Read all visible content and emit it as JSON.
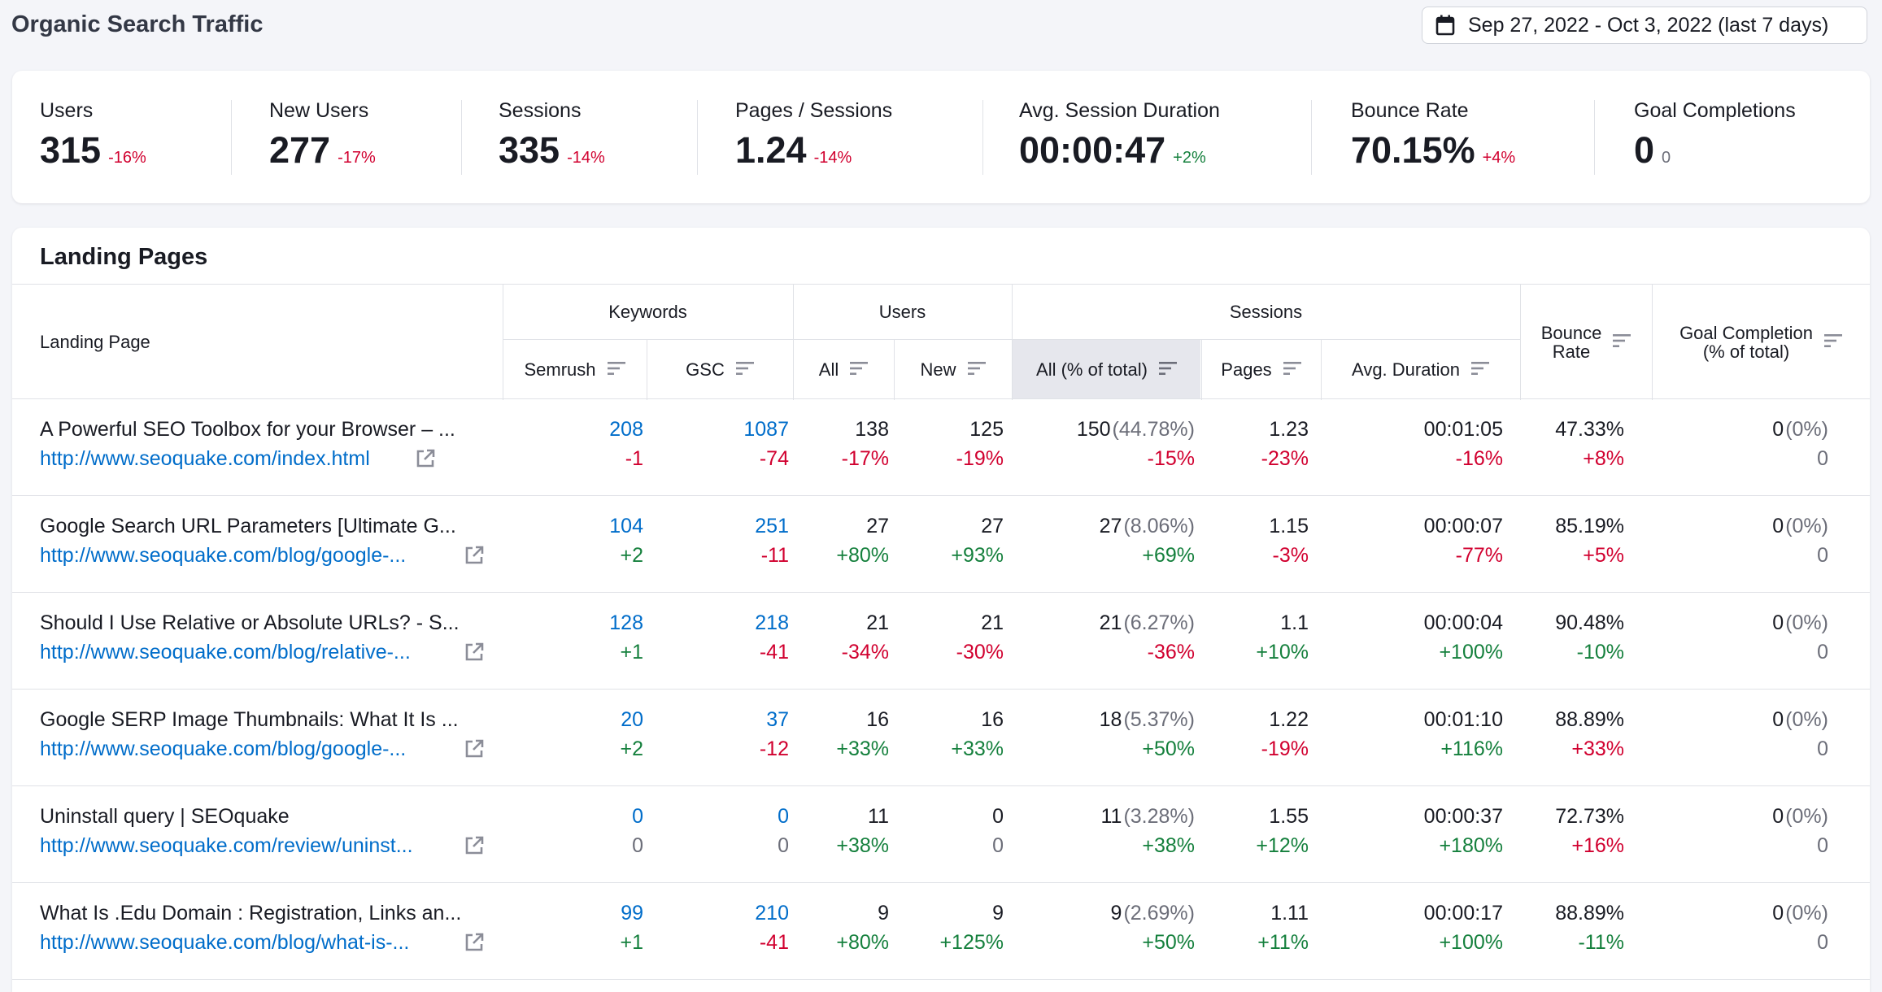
{
  "page_title": "Organic Search Traffic",
  "date_range": "Sep 27, 2022 - Oct 3, 2022 (last 7 days)",
  "kpis": [
    {
      "label": "Users",
      "value": "315",
      "change": "-16%",
      "trend": "neg"
    },
    {
      "label": "New Users",
      "value": "277",
      "change": "-17%",
      "trend": "neg"
    },
    {
      "label": "Sessions",
      "value": "335",
      "change": "-14%",
      "trend": "neg"
    },
    {
      "label": "Pages / Sessions",
      "value": "1.24",
      "change": "-14%",
      "trend": "neg"
    },
    {
      "label": "Avg. Session Duration",
      "value": "00:00:47",
      "change": "+2%",
      "trend": "pos"
    },
    {
      "label": "Bounce Rate",
      "value": "70.15%",
      "change": "+4%",
      "trend": "neg"
    },
    {
      "label": "Goal Completions",
      "value": "0",
      "change": "0",
      "trend": "muted"
    }
  ],
  "landing": {
    "title": "Landing Pages",
    "headers": {
      "landing_page": "Landing Page",
      "keywords": "Keywords",
      "semrush": "Semrush",
      "gsc": "GSC",
      "users": "Users",
      "users_all": "All",
      "users_new": "New",
      "sessions": "Sessions",
      "sessions_all": "All (% of total)",
      "pages": "Pages",
      "avg_duration": "Avg. Duration",
      "bounce_rate_1": "Bounce",
      "bounce_rate_2": "Rate",
      "goal_1": "Goal Completion",
      "goal_2": "(% of total)"
    },
    "rows": [
      {
        "title": "A Powerful SEO Toolbox for your Browser – ...",
        "url": "http://www.seoquake.com/index.html",
        "semrush": "208",
        "semrush_d": "-1",
        "gsc": "1087",
        "gsc_d": "-74",
        "users": "138",
        "users_d": "-17%",
        "new": "125",
        "new_d": "-19%",
        "sess": "150",
        "sess_pct": "(44.78%)",
        "sess_d": "-15%",
        "pages": "1.23",
        "pages_d": "-23%",
        "dur": "00:01:05",
        "dur_d": "-16%",
        "bounce": "47.33%",
        "bounce_d": "+8%",
        "goal": "0",
        "goal_pct": "(0%)",
        "goal_d": "0"
      },
      {
        "title": "Google Search URL Parameters [Ultimate G...",
        "url": "http://www.seoquake.com/blog/google-...",
        "semrush": "104",
        "semrush_d": "+2",
        "gsc": "251",
        "gsc_d": "-11",
        "users": "27",
        "users_d": "+80%",
        "new": "27",
        "new_d": "+93%",
        "sess": "27",
        "sess_pct": "(8.06%)",
        "sess_d": "+69%",
        "pages": "1.15",
        "pages_d": "-3%",
        "dur": "00:00:07",
        "dur_d": "-77%",
        "bounce": "85.19%",
        "bounce_d": "+5%",
        "goal": "0",
        "goal_pct": "(0%)",
        "goal_d": "0"
      },
      {
        "title": "Should I Use Relative or Absolute URLs? - S...",
        "url": "http://www.seoquake.com/blog/relative-...",
        "semrush": "128",
        "semrush_d": "+1",
        "gsc": "218",
        "gsc_d": "-41",
        "users": "21",
        "users_d": "-34%",
        "new": "21",
        "new_d": "-30%",
        "sess": "21",
        "sess_pct": "(6.27%)",
        "sess_d": "-36%",
        "pages": "1.1",
        "pages_d": "+10%",
        "dur": "00:00:04",
        "dur_d": "+100%",
        "bounce": "90.48%",
        "bounce_d": "-10%",
        "goal": "0",
        "goal_pct": "(0%)",
        "goal_d": "0"
      },
      {
        "title": "Google SERP Image Thumbnails: What It Is ...",
        "url": "http://www.seoquake.com/blog/google-...",
        "semrush": "20",
        "semrush_d": "+2",
        "gsc": "37",
        "gsc_d": "-12",
        "users": "16",
        "users_d": "+33%",
        "new": "16",
        "new_d": "+33%",
        "sess": "18",
        "sess_pct": "(5.37%)",
        "sess_d": "+50%",
        "pages": "1.22",
        "pages_d": "-19%",
        "dur": "00:01:10",
        "dur_d": "+116%",
        "bounce": "88.89%",
        "bounce_d": "+33%",
        "goal": "0",
        "goal_pct": "(0%)",
        "goal_d": "0"
      },
      {
        "title": "Uninstall query | SEOquake",
        "url": "http://www.seoquake.com/review/uninst...",
        "semrush": "0",
        "semrush_d": "0",
        "gsc": "0",
        "gsc_d": "0",
        "users": "11",
        "users_d": "+38%",
        "new": "0",
        "new_d": "0",
        "sess": "11",
        "sess_pct": "(3.28%)",
        "sess_d": "+38%",
        "pages": "1.55",
        "pages_d": "+12%",
        "dur": "00:00:37",
        "dur_d": "+180%",
        "bounce": "72.73%",
        "bounce_d": "+16%",
        "goal": "0",
        "goal_pct": "(0%)",
        "goal_d": "0"
      },
      {
        "title": "What Is .Edu Domain : Registration, Links an...",
        "url": "http://www.seoquake.com/blog/what-is-...",
        "semrush": "99",
        "semrush_d": "+1",
        "gsc": "210",
        "gsc_d": "-41",
        "users": "9",
        "users_d": "+80%",
        "new": "9",
        "new_d": "+125%",
        "sess": "9",
        "sess_pct": "(2.69%)",
        "sess_d": "+50%",
        "pages": "1.11",
        "pages_d": "+11%",
        "dur": "00:00:17",
        "dur_d": "+100%",
        "bounce": "88.89%",
        "bounce_d": "-11%",
        "goal": "0",
        "goal_pct": "(0%)",
        "goal_d": "0"
      }
    ]
  }
}
